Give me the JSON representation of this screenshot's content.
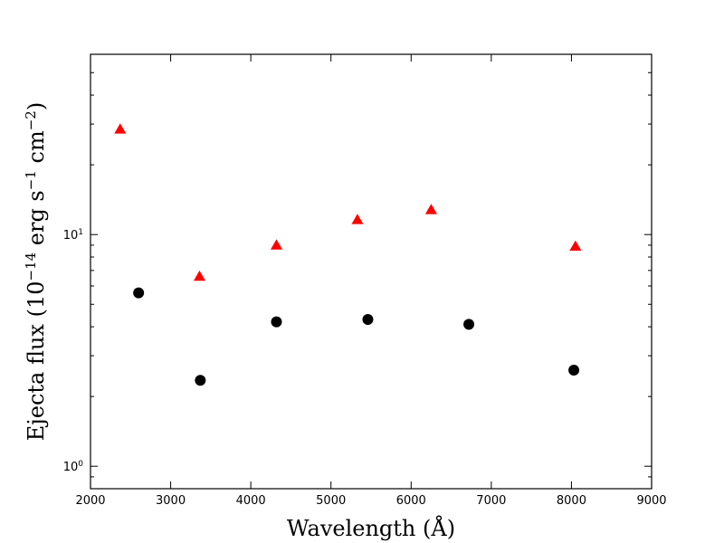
{
  "chart_data": {
    "type": "scatter",
    "xlabel": "Wavelength (Å)",
    "ylabel_parts": {
      "prefix": "Ejecta flux (10",
      "exp1": "−14",
      "mid": " erg s",
      "exp2": "−1",
      "mid2": " cm",
      "exp3": "−2",
      "suffix": ")"
    },
    "xlim": [
      2000,
      9000
    ],
    "ylim": [
      0.8,
      60
    ],
    "yscale": "log",
    "x_ticks": [
      2000,
      3000,
      4000,
      5000,
      6000,
      7000,
      8000,
      9000
    ],
    "x_tick_labels": [
      "2000",
      "3000",
      "4000",
      "5000",
      "6000",
      "7000",
      "8000",
      "9000"
    ],
    "y_major_ticks": [
      1,
      10
    ],
    "y_tick_labels": [
      {
        "base": "10",
        "exp": "0"
      },
      {
        "base": "10",
        "exp": "1"
      }
    ],
    "grid": false,
    "series": [
      {
        "marker": "triangle",
        "color": "#ff0000",
        "points": [
          {
            "x": 2370,
            "y": 28.5
          },
          {
            "x": 3360,
            "y": 6.6
          },
          {
            "x": 4320,
            "y": 9.0
          },
          {
            "x": 5330,
            "y": 11.6
          },
          {
            "x": 6250,
            "y": 12.8
          },
          {
            "x": 8050,
            "y": 8.9
          }
        ]
      },
      {
        "marker": "circle",
        "color": "#000000",
        "points": [
          {
            "x": 2600,
            "y": 5.6
          },
          {
            "x": 3370,
            "y": 2.35
          },
          {
            "x": 4320,
            "y": 4.2
          },
          {
            "x": 5460,
            "y": 4.3
          },
          {
            "x": 6720,
            "y": 4.1
          },
          {
            "x": 8030,
            "y": 2.6
          }
        ]
      }
    ]
  }
}
